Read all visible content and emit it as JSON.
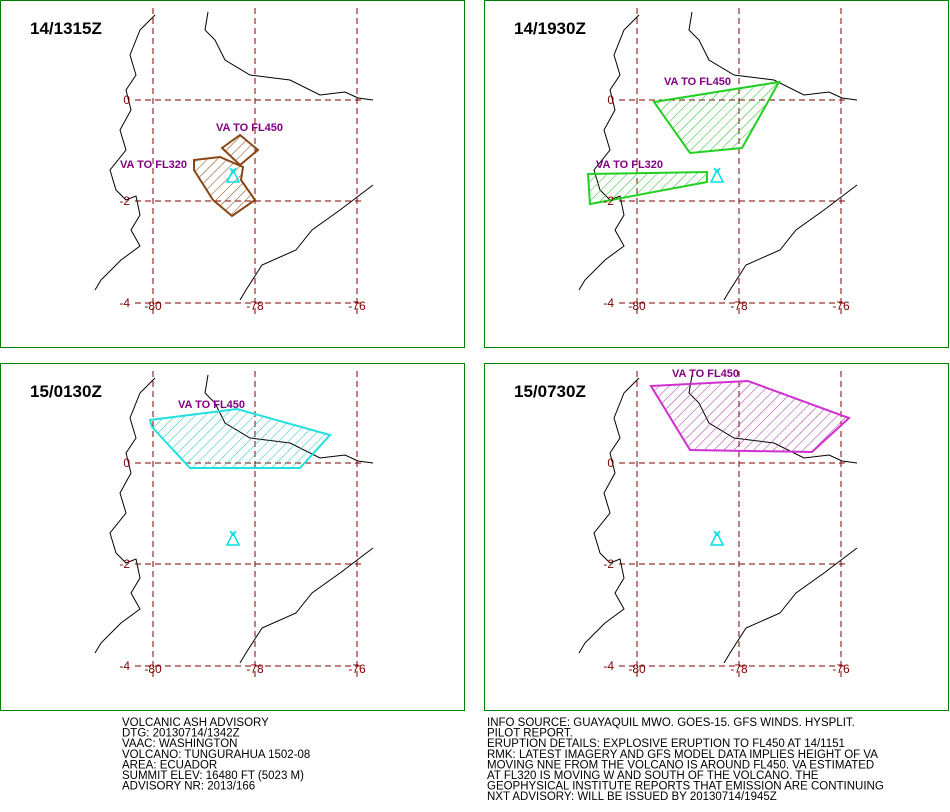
{
  "panels": [
    {
      "title": "14/1315Z",
      "labels": [
        "VA TO FL450",
        "VA TO FL320"
      ]
    },
    {
      "title": "14/1930Z",
      "labels": [
        "VA TO FL450",
        "VA TO FL320"
      ]
    },
    {
      "title": "15/0130Z",
      "labels": [
        "VA TO FL450"
      ]
    },
    {
      "title": "15/0730Z",
      "labels": [
        "VA TO FL450"
      ]
    }
  ],
  "grid": {
    "lat_labels": [
      "0",
      "-2",
      "-4"
    ],
    "lon_labels": [
      "-80",
      "-78",
      "-76"
    ]
  },
  "advisory_left": [
    "VOLCANIC ASH ADVISORY",
    "DTG: 20130714/1342Z",
    "VAAC: WASHINGTON",
    "VOLCANO: TUNGURAHUA 1502-08",
    "AREA: ECUADOR",
    "SUMMIT ELEV: 16480 FT (5023 M)",
    "ADVISORY NR: 2013/166"
  ],
  "advisory_right": [
    "INFO SOURCE: GUAYAQUIL MWO. GOES-15. GFS WINDS. HYSPLIT.",
    "PILOT REPORT.",
    "ERUPTION DETAILS: EXPLOSIVE ERUPTION TO FL450 AT 14/1151",
    "RMK: LATEST IMAGERY AND GFS MODEL DATA IMPLIES HEIGHT OF VA",
    "MOVING NNE FROM THE VOLCANO IS AROUND FL450. VA ESTIMATED",
    "AT FL320 IS MOVING W AND SOUTH OF THE VOLCANO. THE",
    "GEOPHYSICAL INSTITUTE REPORTS THAT EMISSION ARE CONTINUING",
    "NXT ADVISORY: WILL BE ISSUED BY 20130714/1945Z"
  ]
}
